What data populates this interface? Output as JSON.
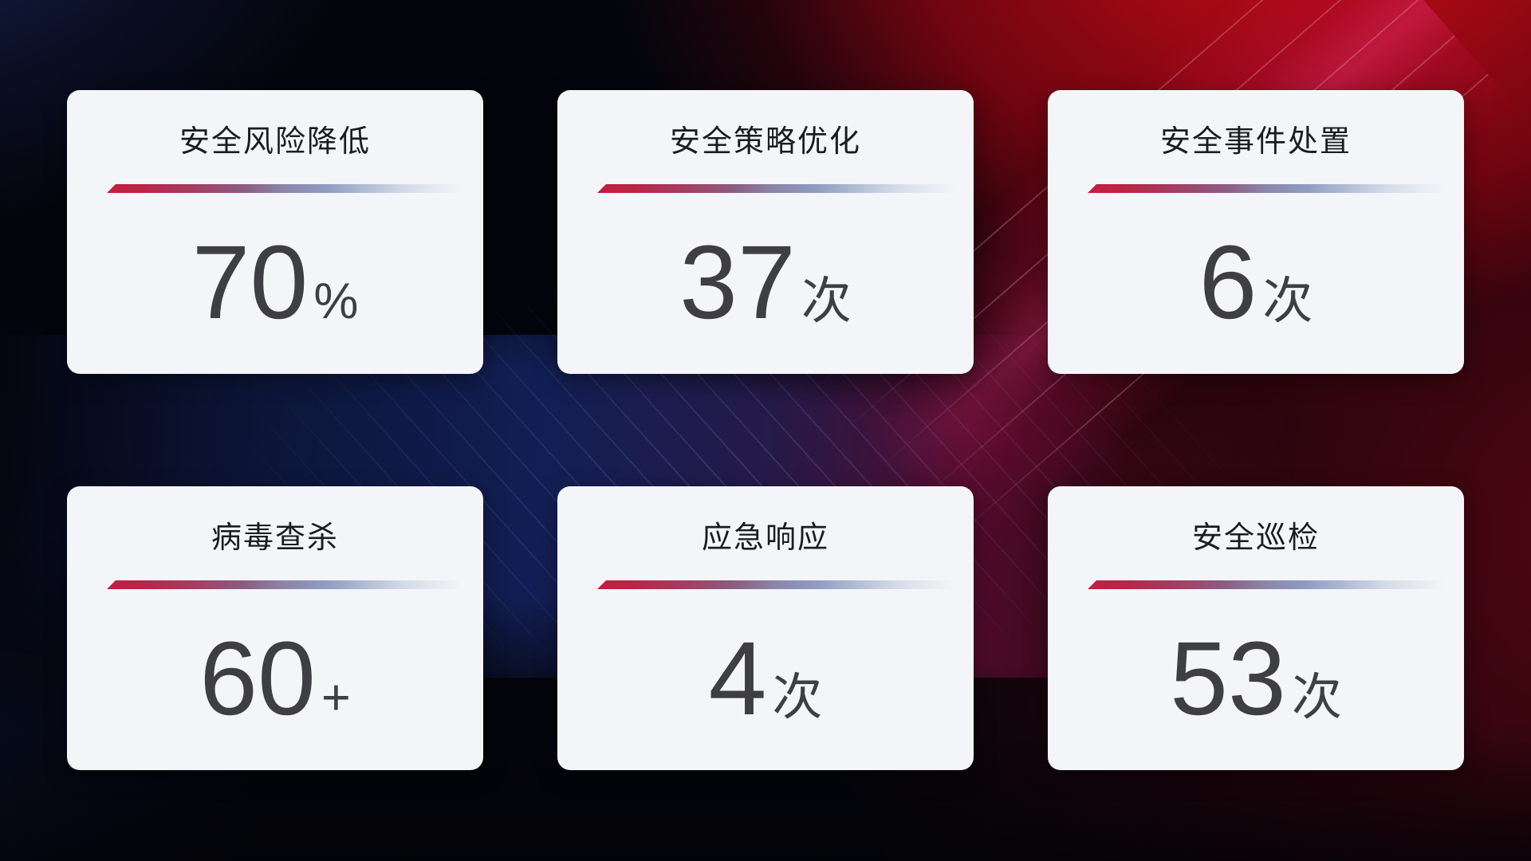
{
  "cards": [
    {
      "title": "安全风险降低",
      "value": "70",
      "unit": "%"
    },
    {
      "title": "安全策略优化",
      "value": "37",
      "unit": "次"
    },
    {
      "title": "安全事件处置",
      "value": "6",
      "unit": "次"
    },
    {
      "title": "病毒查杀",
      "value": "60",
      "unit": "+"
    },
    {
      "title": "应急响应",
      "value": "4",
      "unit": "次"
    },
    {
      "title": "安全巡检",
      "value": "53",
      "unit": "次"
    }
  ],
  "colors": {
    "card_background": "#f4f5f9",
    "title_text": "#1b1c22",
    "value_text": "#3e3e44",
    "divider_gradient_start": "#c31e3f",
    "divider_gradient_mid": "#8f9cc2",
    "divider_gradient_end": "transparent",
    "background_base": "#04050c",
    "background_red_glow": "#c30b17",
    "background_navy_glow": "#1c2a5c"
  }
}
